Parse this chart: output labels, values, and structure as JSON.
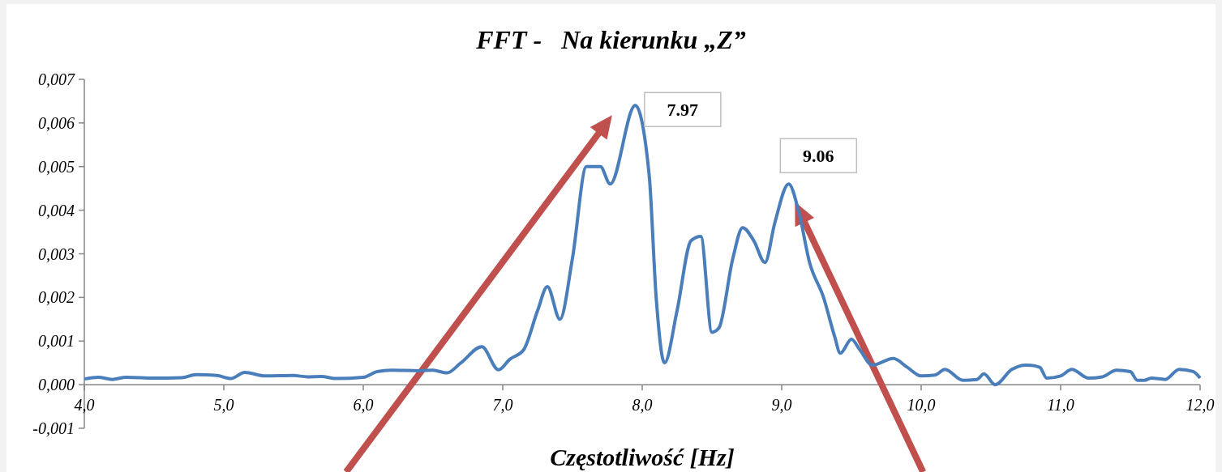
{
  "chart_data": {
    "type": "line",
    "title": "FFT -   Na kierunku „Z”",
    "xlabel": "Częstotliwość [Hz]",
    "xlim": [
      4,
      12
    ],
    "ylim": [
      -0.001,
      0.007
    ],
    "xticks": [
      {
        "value": 4,
        "label": "4,0"
      },
      {
        "value": 5,
        "label": "5,0"
      },
      {
        "value": 6,
        "label": "6,0"
      },
      {
        "value": 7,
        "label": "7,0"
      },
      {
        "value": 8,
        "label": "8,0"
      },
      {
        "value": 9,
        "label": "9,0"
      },
      {
        "value": 10,
        "label": "10,0"
      },
      {
        "value": 11,
        "label": "11,0"
      },
      {
        "value": 12,
        "label": "12,0"
      }
    ],
    "yticks": [
      {
        "value": -0.001,
        "label": "-0,001"
      },
      {
        "value": 0,
        "label": "0,000"
      },
      {
        "value": 0.001,
        "label": "0,001"
      },
      {
        "value": 0.002,
        "label": "0,002"
      },
      {
        "value": 0.003,
        "label": "0,003"
      },
      {
        "value": 0.004,
        "label": "0,004"
      },
      {
        "value": 0.005,
        "label": "0,005"
      },
      {
        "value": 0.006,
        "label": "0,006"
      },
      {
        "value": 0.007,
        "label": "0,007"
      }
    ],
    "grid": false,
    "marker": "none",
    "line_style": "solid",
    "x": [
      4.0,
      4.1,
      4.2,
      4.3,
      4.5,
      4.7,
      4.8,
      4.95,
      5.05,
      5.15,
      5.3,
      5.5,
      5.6,
      5.7,
      5.8,
      6.0,
      6.1,
      6.2,
      6.4,
      6.5,
      6.6,
      6.7,
      6.85,
      6.97,
      7.05,
      7.15,
      7.25,
      7.32,
      7.41,
      7.5,
      7.6,
      7.7,
      7.77,
      7.95,
      8.05,
      8.1,
      8.16,
      8.25,
      8.35,
      8.42,
      8.5,
      8.55,
      8.65,
      8.72,
      8.8,
      8.88,
      8.95,
      9.05,
      9.12,
      9.2,
      9.3,
      9.38,
      9.42,
      9.5,
      9.56,
      9.65,
      9.8,
      9.9,
      10.0,
      10.1,
      10.17,
      10.3,
      10.4,
      10.45,
      10.53,
      10.65,
      10.75,
      10.85,
      10.9,
      11.0,
      11.08,
      11.2,
      11.3,
      11.4,
      11.5,
      11.55,
      11.6,
      11.65,
      11.75,
      11.85,
      11.95,
      12.0
    ],
    "series": [
      {
        "color": "#4a7ebb",
        "values": [
          0.00013,
          0.00017,
          0.00012,
          0.00017,
          0.00015,
          0.00016,
          0.00023,
          0.00021,
          0.00014,
          0.00028,
          0.0002,
          0.00021,
          0.00018,
          0.00019,
          0.00014,
          0.00017,
          0.0003,
          0.00033,
          0.00032,
          0.00033,
          0.00027,
          0.0005,
          0.00087,
          0.00034,
          0.00058,
          0.0008,
          0.0017,
          0.00225,
          0.0015,
          0.0029,
          0.005,
          0.005,
          0.0046,
          0.0064,
          0.0048,
          0.002,
          0.0005,
          0.0017,
          0.0033,
          0.0034,
          0.0012,
          0.0013,
          0.0029,
          0.0036,
          0.0033,
          0.0028,
          0.0037,
          0.0046,
          0.004,
          0.0028,
          0.002,
          0.0011,
          0.00072,
          0.00104,
          0.0008,
          0.00045,
          0.0006,
          0.0004,
          0.0002,
          0.00022,
          0.00035,
          0.0001,
          0.00012,
          0.00025,
          0.0,
          0.00035,
          0.00045,
          0.0004,
          0.00015,
          0.0002,
          0.00035,
          0.00015,
          0.00018,
          0.00033,
          0.0003,
          0.0001,
          0.0001,
          0.00015,
          0.00012,
          0.00035,
          0.0003,
          0.00015
        ]
      }
    ],
    "annotations": [
      {
        "text": "7.97",
        "x": 7.97,
        "y": 0.0064
      },
      {
        "text": "9.06",
        "x": 9.06,
        "y": 0.0046
      }
    ]
  }
}
